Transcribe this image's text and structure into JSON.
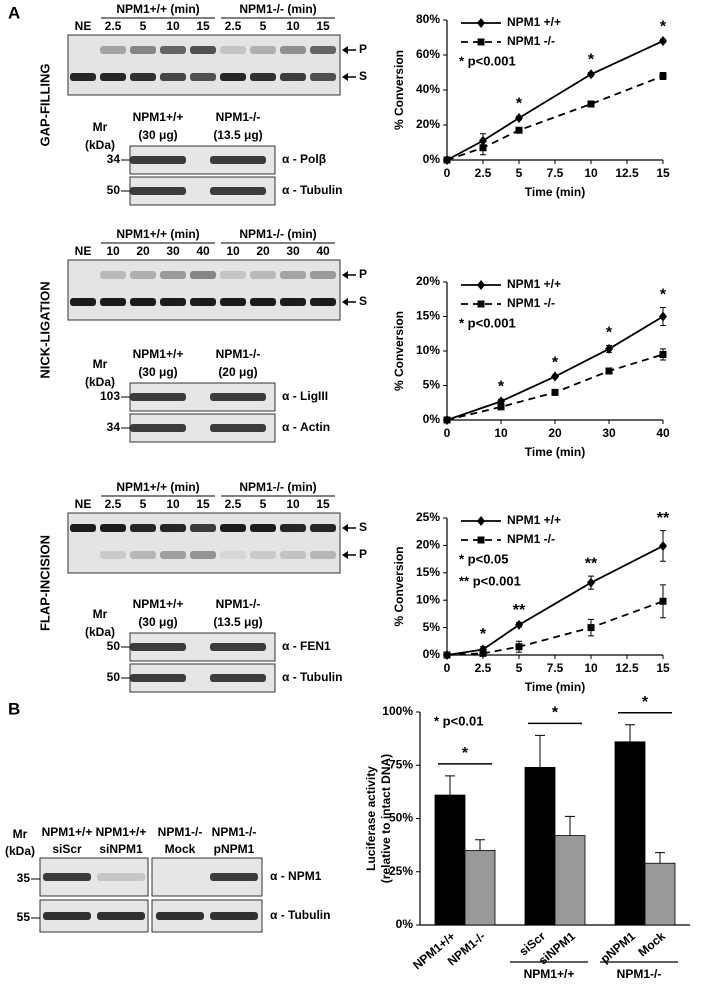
{
  "chart_data": [
    {
      "type": "line",
      "x": [
        0,
        2.5,
        5,
        10,
        15
      ],
      "xlim": [
        0,
        15
      ],
      "xticks": [
        0,
        2.5,
        5,
        7.5,
        10,
        12.5,
        15
      ],
      "ylim": [
        0,
        80
      ],
      "yticks": [
        {
          "value": 0,
          "label": "0%"
        },
        {
          "value": 20,
          "label": "20%"
        },
        {
          "value": 40,
          "label": "40%"
        },
        {
          "value": 60,
          "label": "60%"
        },
        {
          "value": 80,
          "label": "80%"
        }
      ],
      "x_label": "Time (min)",
      "y_label": "% Conversion",
      "series": [
        {
          "name": "NPM1 +/+",
          "color": "#000000",
          "marker": "diamond",
          "dash": false,
          "values": [
            0,
            11,
            24,
            49,
            68
          ],
          "errors": [
            0,
            4,
            1,
            1,
            1
          ]
        },
        {
          "name": "NPM1 -/-",
          "color": "#000000",
          "marker": "square",
          "dash": true,
          "values": [
            0,
            7,
            17,
            32,
            48
          ],
          "errors": [
            0,
            4,
            1,
            1.5,
            2
          ]
        }
      ],
      "annotations": [
        {
          "x": 5,
          "text": "*"
        },
        {
          "x": 10,
          "text": "*"
        },
        {
          "x": 15,
          "text": "*"
        }
      ],
      "notes": [
        "* p<0.001"
      ]
    },
    {
      "type": "line",
      "x": [
        0,
        10,
        20,
        30,
        40
      ],
      "xlim": [
        0,
        40
      ],
      "xticks": [
        0,
        10,
        20,
        30,
        40
      ],
      "ylim": [
        0,
        20
      ],
      "yticks": [
        {
          "value": 0,
          "label": "0%"
        },
        {
          "value": 5,
          "label": "5%"
        },
        {
          "value": 10,
          "label": "10%"
        },
        {
          "value": 15,
          "label": "15%"
        },
        {
          "value": 20,
          "label": "20%"
        }
      ],
      "x_label": "Time (min)",
      "y_label": "% Conversion",
      "series": [
        {
          "name": "NPM1 +/+",
          "color": "#000000",
          "marker": "diamond",
          "dash": false,
          "values": [
            0,
            2.7,
            6.3,
            10.3,
            15.0
          ],
          "errors": [
            0,
            0.3,
            0.2,
            0.5,
            1.3
          ]
        },
        {
          "name": "NPM1 -/-",
          "color": "#000000",
          "marker": "square",
          "dash": true,
          "values": [
            0,
            1.9,
            4.0,
            7.1,
            9.5
          ],
          "errors": [
            0,
            0.2,
            0.2,
            0.2,
            0.8
          ]
        }
      ],
      "annotations": [
        {
          "x": 10,
          "text": "*"
        },
        {
          "x": 20,
          "text": "*"
        },
        {
          "x": 30,
          "text": "*"
        },
        {
          "x": 40,
          "text": "*"
        }
      ],
      "notes": [
        "* p<0.001"
      ]
    },
    {
      "type": "line",
      "x": [
        0,
        2.5,
        5,
        10,
        15
      ],
      "xlim": [
        0,
        15
      ],
      "xticks": [
        0,
        2.5,
        5,
        7.5,
        10,
        12.5,
        15
      ],
      "ylim": [
        0,
        25
      ],
      "yticks": [
        {
          "value": 0,
          "label": "0%"
        },
        {
          "value": 5,
          "label": "5%"
        },
        {
          "value": 10,
          "label": "10%"
        },
        {
          "value": 15,
          "label": "15%"
        },
        {
          "value": 20,
          "label": "20%"
        },
        {
          "value": 25,
          "label": "25%"
        }
      ],
      "x_label": "Time (min)",
      "y_label": "% Conversion",
      "series": [
        {
          "name": "NPM1 +/+",
          "color": "#000000",
          "marker": "diamond",
          "dash": false,
          "values": [
            0,
            1,
            5.5,
            13.2,
            19.9
          ],
          "errors": [
            0,
            0.5,
            0.4,
            1.2,
            2.8
          ]
        },
        {
          "name": "NPM1 -/-",
          "color": "#000000",
          "marker": "square",
          "dash": true,
          "values": [
            0,
            0.3,
            1.5,
            5,
            9.8
          ],
          "errors": [
            0,
            0.4,
            1,
            1.5,
            3
          ]
        }
      ],
      "annotations": [
        {
          "x": 2.5,
          "text": "*"
        },
        {
          "x": 5,
          "text": "**"
        },
        {
          "x": 10,
          "text": "**"
        },
        {
          "x": 15,
          "text": "**"
        }
      ],
      "notes": [
        "* p<0.05",
        "** p<0.001"
      ]
    },
    {
      "type": "bar",
      "categories": [
        "NPM1+/+",
        "NPM1-/-",
        "siScr",
        "siNPM1",
        "pNPM1",
        "Mock"
      ],
      "values": [
        61,
        35,
        74,
        42,
        86,
        29
      ],
      "errors": [
        9,
        5,
        15,
        9,
        8,
        5
      ],
      "colors": [
        "#000000",
        "#999999",
        "#000000",
        "#999999",
        "#000000",
        "#999999"
      ],
      "ylim": [
        0,
        100
      ],
      "yticks": [
        {
          "value": 0,
          "label": "0%"
        },
        {
          "value": 25,
          "label": "25%"
        },
        {
          "value": 50,
          "label": "50%"
        },
        {
          "value": 75,
          "label": "75%"
        },
        {
          "value": 100,
          "label": "100%"
        }
      ],
      "y_label": [
        "Luciferase activity",
        "(relative to intact DNA)"
      ],
      "brackets": [
        {
          "from": 0,
          "to": 1,
          "text": "*"
        },
        {
          "from": 2,
          "to": 3,
          "text": "*"
        },
        {
          "from": 4,
          "to": 5,
          "text": "*"
        }
      ],
      "groups": [
        {
          "from": 2,
          "to": 3,
          "label": "NPM1+/+"
        },
        {
          "from": 4,
          "to": 5,
          "label": "NPM1-/-"
        }
      ],
      "notes": [
        "* p<0.01"
      ]
    }
  ],
  "figure": {
    "panel_a": "A",
    "panel_b": "B",
    "rows": [
      {
        "assay": "GAP-FILLING",
        "gel": {
          "ne": "NE",
          "groups": [
            {
              "label": "NPM1+/+ (min)",
              "lanes": [
                "2.5",
                "5",
                "10",
                "15"
              ]
            },
            {
              "label": "NPM1-/- (min)",
              "lanes": [
                "2.5",
                "5",
                "10",
                "15"
              ]
            }
          ],
          "bands": [
            "P",
            "S"
          ]
        },
        "western": {
          "mr": "Mr",
          "kda": "(kDa)",
          "samples": [
            {
              "name": "NPM1+/+",
              "amount": "(30 μg)"
            },
            {
              "name": "NPM1-/-",
              "amount": "(13.5 μg)"
            }
          ],
          "blots": [
            {
              "marker": "34",
              "antibody": "α - Polβ"
            },
            {
              "marker": "50",
              "antibody": "α - Tubulin"
            }
          ]
        }
      },
      {
        "assay": "NICK-LIGATION",
        "gel": {
          "ne": "NE",
          "groups": [
            {
              "label": "NPM1+/+ (min)",
              "lanes": [
                "10",
                "20",
                "30",
                "40"
              ]
            },
            {
              "label": "NPM1-/- (min)",
              "lanes": [
                "10",
                "20",
                "30",
                "40"
              ]
            }
          ],
          "bands": [
            "P",
            "S"
          ]
        },
        "western": {
          "mr": "Mr",
          "kda": "(kDa)",
          "samples": [
            {
              "name": "NPM1+/+",
              "amount": "(30 μg)"
            },
            {
              "name": "NPM1-/-",
              "amount": "(20 μg)"
            }
          ],
          "blots": [
            {
              "marker": "103",
              "antibody": "α - LigIII"
            },
            {
              "marker": "34",
              "antibody": "α - Actin"
            }
          ]
        }
      },
      {
        "assay": "FLAP-INCISION",
        "gel": {
          "ne": "NE",
          "groups": [
            {
              "label": "NPM1+/+ (min)",
              "lanes": [
                "2.5",
                "5",
                "10",
                "15"
              ]
            },
            {
              "label": "NPM1-/- (min)",
              "lanes": [
                "2.5",
                "5",
                "10",
                "15"
              ]
            }
          ],
          "bands": [
            "S",
            "P"
          ]
        },
        "western": {
          "mr": "Mr",
          "kda": "(kDa)",
          "samples": [
            {
              "name": "NPM1+/+",
              "amount": "(30 μg)"
            },
            {
              "name": "NPM1-/-",
              "amount": "(13.5 μg)"
            }
          ],
          "blots": [
            {
              "marker": "50",
              "antibody": "α - FEN1"
            },
            {
              "marker": "50",
              "antibody": "α - Tubulin"
            }
          ]
        }
      }
    ],
    "western_b": {
      "mr": "Mr",
      "kda": "(kDa)",
      "samples": [
        {
          "name": "NPM1+/+",
          "treatment": "siScr"
        },
        {
          "name": "NPM1+/+",
          "treatment": "siNPM1"
        },
        {
          "name": "NPM1-/-",
          "treatment": "Mock"
        },
        {
          "name": "NPM1-/-",
          "treatment": "pNPM1"
        }
      ],
      "blots": [
        {
          "marker": "35",
          "antibody": "α - NPM1"
        },
        {
          "marker": "55",
          "antibody": "α - Tubulin"
        }
      ]
    }
  }
}
